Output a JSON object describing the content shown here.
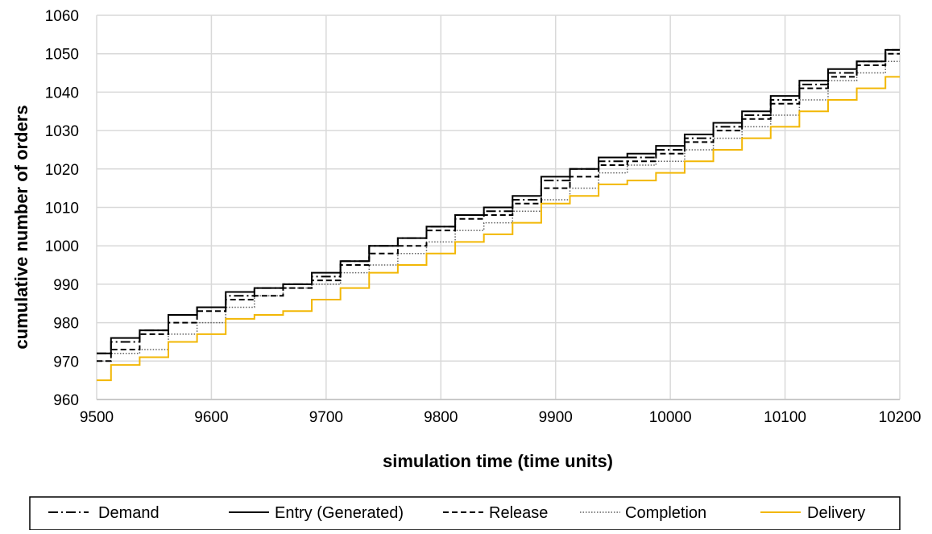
{
  "chart_data": {
    "type": "line",
    "xlabel": "simulation time (time units)",
    "ylabel": "cumulative number of orders",
    "xlim": [
      9500,
      10200
    ],
    "ylim": [
      960,
      1060
    ],
    "x_ticks": [
      "9500",
      "9600",
      "9700",
      "9800",
      "9900",
      "10000",
      "10100",
      "10200"
    ],
    "y_ticks": [
      "960",
      "970",
      "980",
      "990",
      "1000",
      "1010",
      "1020",
      "1030",
      "1040",
      "1050",
      "1060"
    ],
    "grid": true,
    "legend_position": "bottom",
    "series": [
      {
        "name": "Demand",
        "style": "dash-dot",
        "color": "#000000",
        "x": [
          9500,
          9525,
          9550,
          9575,
          9600,
          9625,
          9650,
          9675,
          9700,
          9725,
          9750,
          9775,
          9800,
          9825,
          9850,
          9875,
          9900,
          9925,
          9950,
          9975,
          10000,
          10025,
          10050,
          10075,
          10100,
          10125,
          10150,
          10175,
          10200
        ],
        "values": [
          972,
          975,
          978,
          982,
          984,
          987,
          989,
          990,
          992,
          996,
          1000,
          1002,
          1005,
          1008,
          1009,
          1012,
          1017,
          1020,
          1022,
          1023,
          1025,
          1028,
          1031,
          1034,
          1038,
          1042,
          1045,
          1048,
          1051
        ]
      },
      {
        "name": "Entry (Generated)",
        "style": "solid",
        "color": "#000000",
        "x": [
          9500,
          9525,
          9550,
          9575,
          9600,
          9625,
          9650,
          9675,
          9700,
          9725,
          9750,
          9775,
          9800,
          9825,
          9850,
          9875,
          9900,
          9925,
          9950,
          9975,
          10000,
          10025,
          10050,
          10075,
          10100,
          10125,
          10150,
          10175,
          10200
        ],
        "values": [
          972,
          976,
          978,
          982,
          984,
          988,
          989,
          990,
          993,
          996,
          1000,
          1002,
          1005,
          1008,
          1010,
          1013,
          1018,
          1020,
          1023,
          1024,
          1026,
          1029,
          1032,
          1035,
          1039,
          1043,
          1046,
          1048,
          1051
        ]
      },
      {
        "name": "Release",
        "style": "dashed",
        "color": "#000000",
        "x": [
          9500,
          9525,
          9550,
          9575,
          9600,
          9625,
          9650,
          9675,
          9700,
          9725,
          9750,
          9775,
          9800,
          9825,
          9850,
          9875,
          9900,
          9925,
          9950,
          9975,
          10000,
          10025,
          10050,
          10075,
          10100,
          10125,
          10150,
          10175,
          10200
        ],
        "values": [
          970,
          973,
          977,
          980,
          983,
          986,
          987,
          989,
          991,
          995,
          998,
          1000,
          1004,
          1007,
          1008,
          1011,
          1015,
          1018,
          1021,
          1022,
          1024,
          1027,
          1030,
          1033,
          1037,
          1041,
          1044,
          1047,
          1050
        ]
      },
      {
        "name": "Completion",
        "style": "dotted",
        "color": "#606060",
        "x": [
          9500,
          9525,
          9550,
          9575,
          9600,
          9625,
          9650,
          9675,
          9700,
          9725,
          9750,
          9775,
          9800,
          9825,
          9850,
          9875,
          9900,
          9925,
          9950,
          9975,
          10000,
          10025,
          10050,
          10075,
          10100,
          10125,
          10150,
          10175,
          10200
        ],
        "values": [
          970,
          972,
          973,
          977,
          980,
          984,
          987,
          989,
          990,
          993,
          995,
          998,
          1001,
          1004,
          1006,
          1009,
          1012,
          1015,
          1019,
          1021,
          1022,
          1025,
          1028,
          1031,
          1034,
          1038,
          1043,
          1045,
          1048
        ]
      },
      {
        "name": "Delivery",
        "style": "solid",
        "color": "#F2B705",
        "x": [
          9500,
          9525,
          9550,
          9575,
          9600,
          9625,
          9650,
          9675,
          9700,
          9725,
          9750,
          9775,
          9800,
          9825,
          9850,
          9875,
          9900,
          9925,
          9950,
          9975,
          10000,
          10025,
          10050,
          10075,
          10100,
          10125,
          10150,
          10175,
          10200
        ],
        "values": [
          965,
          969,
          971,
          975,
          977,
          981,
          982,
          983,
          986,
          989,
          993,
          995,
          998,
          1001,
          1003,
          1006,
          1011,
          1013,
          1016,
          1017,
          1019,
          1022,
          1025,
          1028,
          1031,
          1035,
          1038,
          1041,
          1044
        ]
      }
    ]
  }
}
